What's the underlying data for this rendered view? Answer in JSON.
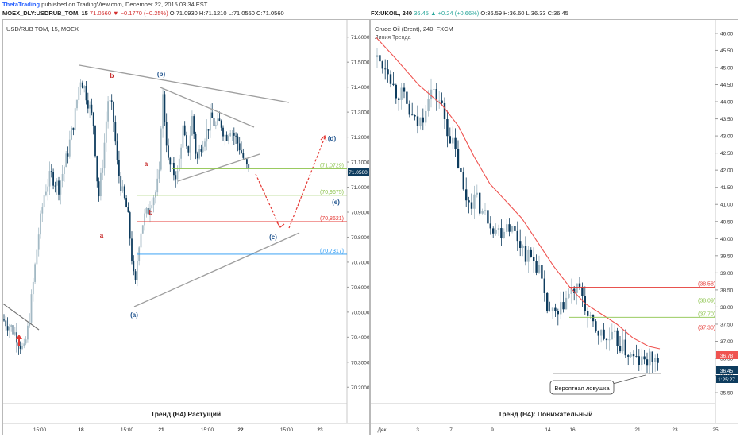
{
  "publisher": {
    "name": "ThetaTrading",
    "text": " published on TradingView.com, December 22, 2015 03:34 EST"
  },
  "left_header": {
    "symbol": "MOEX_DLY:USDRUB_TOM, 15",
    "last": "71.0560",
    "change": "−0.1770 (−0.25%)",
    "ohlc": "O:71.0930 H:71.1210 L:71.0550 C:71.0560"
  },
  "right_header": {
    "symbol": "FX:UKOIL, 240",
    "last": "36.45",
    "change": "+0.24 (+0.66%)",
    "ohlc": "O:36.59 H:36.60 L:36.33 C:36.45"
  },
  "colors": {
    "bull": "#a3b9c4",
    "bear": "#0e3c5e",
    "ma": "#ef5350",
    "green_level": "#8bc34a",
    "red_level": "#e53935",
    "blue_level": "#2196f3",
    "trendline": "#9e9e9e",
    "wave_red": "#c62828",
    "wave_blue": "#1a4f8b"
  },
  "chart_data": [
    {
      "type": "candlestick",
      "title": "USD/RUB TOM, 15, MOEX",
      "caption": "Тренд (H4) Растущий",
      "ylim": [
        70.15,
        71.65
      ],
      "y_ticks": [
        "71.6000",
        "71.5000",
        "71.4000",
        "71.3000",
        "71.2000",
        "71.1000",
        "71.0000",
        "70.9000",
        "70.8000",
        "70.7000",
        "70.6000",
        "70.5000",
        "70.4000",
        "70.3000",
        "70.2000"
      ],
      "x_ticks": [
        "15:00",
        "18",
        "15:00",
        "21",
        "15:00",
        "22",
        "15:00",
        "23"
      ],
      "price_label": "71.0560",
      "levels": [
        {
          "label": "(71,0729)",
          "value": 71.0729,
          "color": "green"
        },
        {
          "label": "(70,9675)",
          "value": 70.9675,
          "color": "green"
        },
        {
          "label": "(70,8621)",
          "value": 70.8621,
          "color": "red"
        },
        {
          "label": "(70,7317)",
          "value": 70.7317,
          "color": "blue"
        }
      ],
      "wave_labels": [
        {
          "text": "a",
          "color": "red"
        },
        {
          "text": "b",
          "color": "red"
        },
        {
          "text": "(b)",
          "color": "blue"
        },
        {
          "text": "a",
          "color": "red"
        },
        {
          "text": "b",
          "color": "red"
        },
        {
          "text": "(a)",
          "color": "blue"
        },
        {
          "text": "(c)",
          "color": "blue"
        },
        {
          "text": "(d)",
          "color": "blue"
        },
        {
          "text": "(e)",
          "color": "blue"
        }
      ]
    },
    {
      "type": "candlestick",
      "title": "Crude Oil (Brent), 240, FXCM",
      "subtitle": "Линия Тренда",
      "caption": "Тренд (H4): Понижательный",
      "ylim": [
        35.2,
        46.3
      ],
      "y_ticks": [
        "46.00",
        "45.50",
        "45.00",
        "44.50",
        "44.00",
        "43.50",
        "43.00",
        "42.50",
        "42.00",
        "41.50",
        "41.00",
        "40.50",
        "40.00",
        "39.50",
        "39.00",
        "38.50",
        "38.00",
        "37.50",
        "37.00",
        "36.50",
        "36.00",
        "35.50"
      ],
      "x_ticks": [
        "Дек",
        "3",
        "7",
        "9",
        "14",
        "16",
        "21",
        "23",
        "25"
      ],
      "price_labels": [
        "36.78",
        "36.45",
        "1:25:27"
      ],
      "levels": [
        {
          "label": "(38.58)",
          "value": 38.58,
          "color": "red"
        },
        {
          "label": "(38.09)",
          "value": 38.09,
          "color": "green"
        },
        {
          "label": "(37.70)",
          "value": 37.7,
          "color": "green"
        },
        {
          "label": "(37.30)",
          "value": 37.3,
          "color": "red"
        }
      ],
      "annotation": "Вероятная ловушка"
    }
  ]
}
